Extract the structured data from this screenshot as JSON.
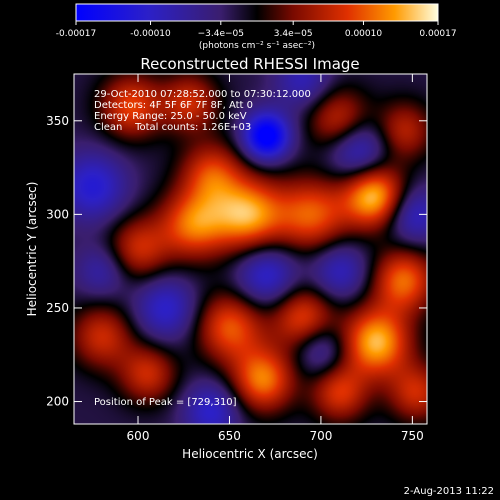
{
  "chart_data": {
    "type": "heatmap",
    "title": "Reconstructed RHESSI Image",
    "xlabel": "Heliocentric X (arcsec)",
    "ylabel": "Heliocentric Y (arcsec)",
    "xlim": [
      565,
      758
    ],
    "ylim": [
      188,
      375
    ],
    "x_ticks": [
      "600",
      "650",
      "700",
      "750"
    ],
    "y_ticks": [
      "200",
      "250",
      "300",
      "350"
    ],
    "colorbar": {
      "ticks": [
        "-0.00017",
        "-0.00010",
        "−3.4e−05",
        "3.4e−05",
        "0.00010",
        "0.00017"
      ],
      "tick_values": [
        -0.00017,
        -0.0001,
        -3.4e-05,
        3.4e-05,
        0.0001,
        0.00017
      ],
      "range": [
        -0.00017,
        0.00017
      ],
      "unit_label": "(photons cm⁻² s⁻¹ asec⁻²)"
    },
    "annotations": [
      "29-Oct-2010 07:28:52.000 to 07:30:12.000",
      "Detectors: 4F 5F 6F 7F 8F, Att 0",
      "Energy Range: 25.0 - 50.0 keV",
      "Clean    Total counts: 1.26E+03"
    ],
    "peak_label": "Position of Peak = [729,310]",
    "peak_position": [
      729,
      310
    ],
    "blobs": [
      {
        "x": 729,
        "y": 310,
        "v": 1.0,
        "s": 12
      },
      {
        "x": 660,
        "y": 300,
        "v": 0.9,
        "s": 14
      },
      {
        "x": 630,
        "y": 295,
        "v": 0.75,
        "s": 13
      },
      {
        "x": 695,
        "y": 300,
        "v": 0.7,
        "s": 14
      },
      {
        "x": 640,
        "y": 322,
        "v": 0.6,
        "s": 12
      },
      {
        "x": 745,
        "y": 265,
        "v": 0.75,
        "s": 12
      },
      {
        "x": 600,
        "y": 282,
        "v": 0.55,
        "s": 12
      },
      {
        "x": 580,
        "y": 235,
        "v": 0.55,
        "s": 12
      },
      {
        "x": 650,
        "y": 240,
        "v": 0.7,
        "s": 13
      },
      {
        "x": 690,
        "y": 245,
        "v": 0.65,
        "s": 12
      },
      {
        "x": 730,
        "y": 232,
        "v": 0.95,
        "s": 13
      },
      {
        "x": 668,
        "y": 212,
        "v": 0.8,
        "s": 12
      },
      {
        "x": 710,
        "y": 205,
        "v": 0.6,
        "s": 11
      },
      {
        "x": 605,
        "y": 215,
        "v": 0.55,
        "s": 11
      },
      {
        "x": 596,
        "y": 358,
        "v": 0.65,
        "s": 12
      },
      {
        "x": 628,
        "y": 360,
        "v": 0.55,
        "s": 11
      },
      {
        "x": 710,
        "y": 350,
        "v": 0.6,
        "s": 12
      },
      {
        "x": 745,
        "y": 345,
        "v": 0.5,
        "s": 11
      },
      {
        "x": 752,
        "y": 205,
        "v": 0.55,
        "s": 11
      },
      {
        "x": 670,
        "y": 342,
        "v": -1.0,
        "s": 9
      },
      {
        "x": 720,
        "y": 335,
        "v": -0.6,
        "s": 12
      },
      {
        "x": 575,
        "y": 315,
        "v": -0.55,
        "s": 13
      },
      {
        "x": 615,
        "y": 250,
        "v": -0.5,
        "s": 12
      },
      {
        "x": 670,
        "y": 268,
        "v": -0.55,
        "s": 12
      },
      {
        "x": 710,
        "y": 270,
        "v": -0.45,
        "s": 11
      },
      {
        "x": 750,
        "y": 300,
        "v": -0.5,
        "s": 11
      },
      {
        "x": 640,
        "y": 195,
        "v": -0.5,
        "s": 11
      },
      {
        "x": 700,
        "y": 228,
        "v": -0.4,
        "s": 10
      },
      {
        "x": 580,
        "y": 270,
        "v": -0.35,
        "s": 10
      },
      {
        "x": 690,
        "y": 372,
        "v": -0.4,
        "s": 11
      }
    ]
  },
  "footer": {
    "date": "2-Aug-2013 11:22"
  }
}
